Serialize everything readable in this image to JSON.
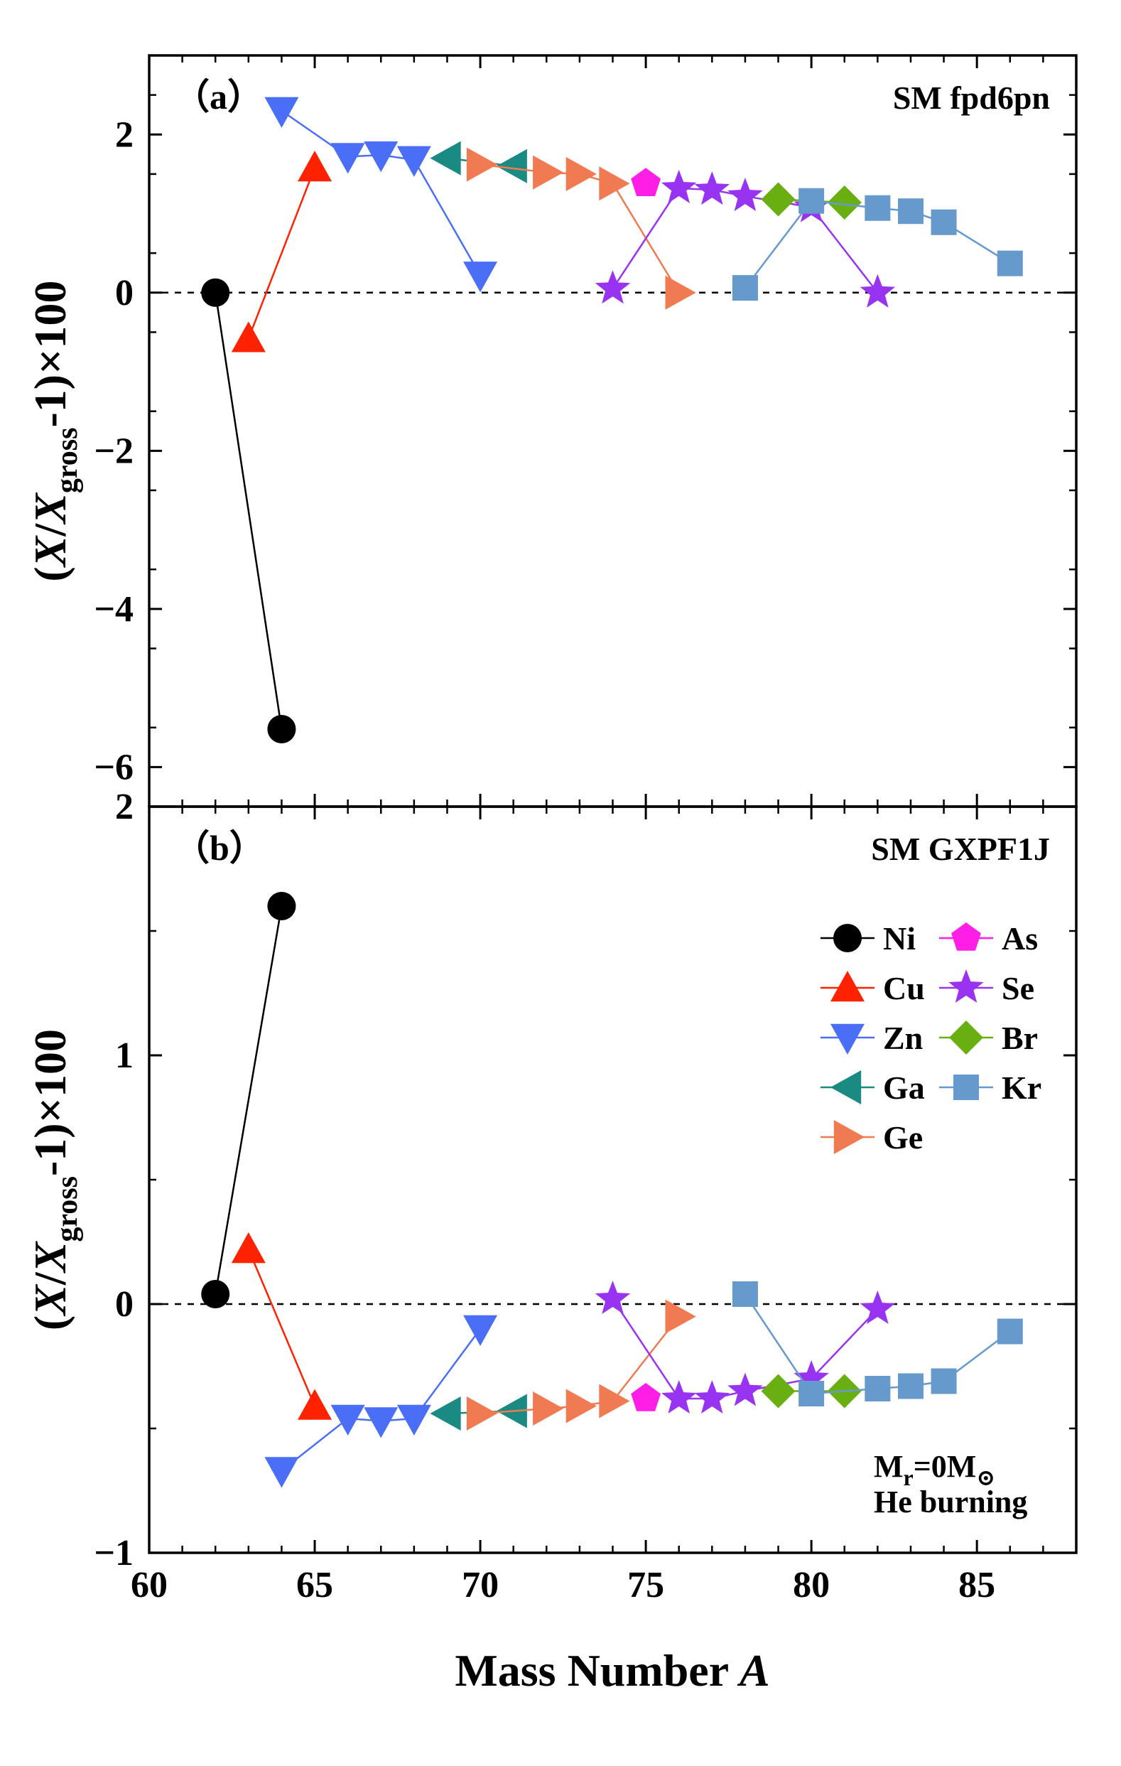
{
  "chart_data": [
    {
      "type": "line",
      "panel_label": "（a）",
      "title": "SM fpd6pn",
      "ylabel": "(X/Xgross-1)×100",
      "xlabel": "",
      "ylim": [
        -6.5,
        3.0
      ],
      "yticks": [
        -6,
        -4,
        -2,
        0,
        2
      ],
      "ytick_labels": [
        "−6",
        "−4",
        "−2",
        "0",
        "2"
      ],
      "series": [
        {
          "name": "Ni",
          "x": [
            62,
            64
          ],
          "y": [
            0.0,
            -5.52
          ]
        },
        {
          "name": "Cu",
          "x": [
            63,
            65
          ],
          "y": [
            -0.58,
            1.58
          ]
        },
        {
          "name": "Zn",
          "x": [
            64,
            66,
            67,
            68,
            70
          ],
          "y": [
            2.3,
            1.72,
            1.74,
            1.68,
            0.22
          ]
        },
        {
          "name": "Ga",
          "x": [
            69,
            71
          ],
          "y": [
            1.7,
            1.6
          ]
        },
        {
          "name": "Ge",
          "x": [
            70,
            72,
            73,
            74,
            76
          ],
          "y": [
            1.62,
            1.52,
            1.5,
            1.38,
            0.0
          ]
        },
        {
          "name": "As",
          "x": [
            75
          ],
          "y": [
            1.38
          ]
        },
        {
          "name": "Se",
          "x": [
            74,
            76,
            77,
            78,
            80,
            82
          ],
          "y": [
            0.05,
            1.32,
            1.3,
            1.22,
            1.08,
            0.0
          ]
        },
        {
          "name": "Br",
          "x": [
            79,
            81
          ],
          "y": [
            1.18,
            1.14
          ]
        },
        {
          "name": "Kr",
          "x": [
            78,
            80,
            82,
            83,
            84,
            86
          ],
          "y": [
            0.06,
            1.16,
            1.07,
            1.03,
            0.89,
            0.37
          ]
        }
      ]
    },
    {
      "type": "line",
      "panel_label": "（b）",
      "title": "SM GXPF1J",
      "ylabel": "(X/Xgross-1)×100",
      "xlabel": "Mass Number A",
      "ylim": [
        -1.0,
        2.0
      ],
      "yticks": [
        -1,
        0,
        1,
        2
      ],
      "ytick_labels": [
        "−1",
        "0",
        "1",
        "2"
      ],
      "xlim": [
        60,
        88
      ],
      "xticks": [
        60,
        65,
        70,
        75,
        80,
        85
      ],
      "xtick_labels": [
        "60",
        "65",
        "70",
        "75",
        "80",
        "85"
      ],
      "legend_position": "right",
      "note": [
        "Mr=0M⊙",
        "He burning"
      ],
      "series": [
        {
          "name": "Ni",
          "x": [
            62,
            64
          ],
          "y": [
            0.04,
            1.6
          ]
        },
        {
          "name": "Cu",
          "x": [
            63,
            65
          ],
          "y": [
            0.22,
            -0.41
          ]
        },
        {
          "name": "Zn",
          "x": [
            64,
            66,
            67,
            68,
            70
          ],
          "y": [
            -0.67,
            -0.46,
            -0.47,
            -0.46,
            -0.1
          ]
        },
        {
          "name": "Ga",
          "x": [
            69,
            71
          ],
          "y": [
            -0.44,
            -0.43
          ]
        },
        {
          "name": "Ge",
          "x": [
            70,
            72,
            73,
            74,
            76
          ],
          "y": [
            -0.44,
            -0.42,
            -0.41,
            -0.39,
            -0.05
          ]
        },
        {
          "name": "As",
          "x": [
            75
          ],
          "y": [
            -0.38
          ]
        },
        {
          "name": "Se",
          "x": [
            74,
            76,
            77,
            78,
            80,
            82
          ],
          "y": [
            0.02,
            -0.38,
            -0.38,
            -0.35,
            -0.3,
            -0.02
          ]
        },
        {
          "name": "Br",
          "x": [
            79,
            81
          ],
          "y": [
            -0.35,
            -0.35
          ]
        },
        {
          "name": "Kr",
          "x": [
            78,
            80,
            82,
            83,
            84,
            86
          ],
          "y": [
            0.04,
            -0.36,
            -0.34,
            -0.33,
            -0.31,
            -0.11
          ]
        }
      ]
    }
  ],
  "styles": {
    "Ni": {
      "color": "#000000",
      "marker": "circle"
    },
    "Cu": {
      "color": "#ff2200",
      "marker": "triangle-up"
    },
    "Zn": {
      "color": "#4a6ef5",
      "marker": "triangle-down"
    },
    "Ga": {
      "color": "#1a8a82",
      "marker": "triangle-left"
    },
    "Ge": {
      "color": "#f07a52",
      "marker": "triangle-right"
    },
    "As": {
      "color": "#ff1ee6",
      "marker": "pentagon"
    },
    "Se": {
      "color": "#9933f2",
      "marker": "star"
    },
    "Br": {
      "color": "#6aaf12",
      "marker": "diamond"
    },
    "Kr": {
      "color": "#6699cc",
      "marker": "square"
    }
  },
  "legend": [
    [
      "Ni",
      "As"
    ],
    [
      "Cu",
      "Se"
    ],
    [
      "Zn",
      "Br"
    ],
    [
      "Ga",
      "Kr"
    ],
    [
      "Ge"
    ]
  ]
}
